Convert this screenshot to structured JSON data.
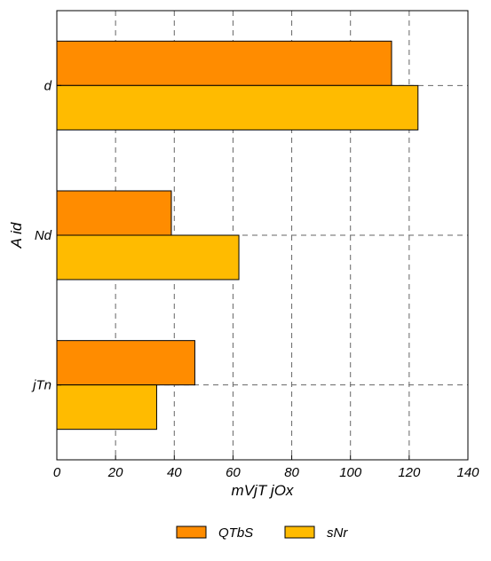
{
  "chart_data": {
    "type": "bar",
    "orientation": "horizontal",
    "categories": [
      "d",
      "Nd",
      "jTn"
    ],
    "series": [
      {
        "name": "QTbS",
        "values": [
          114,
          39,
          47
        ],
        "color": "#ff8c00"
      },
      {
        "name": "sNr",
        "values": [
          123,
          62,
          34
        ],
        "color": "#ffbb00"
      }
    ],
    "xlabel": "mVjT  jOx",
    "ylabel": "A  id",
    "xlim": [
      0,
      140
    ],
    "xticks": [
      0,
      20,
      40,
      60,
      80,
      100,
      120,
      140
    ],
    "grid": true,
    "legend_position": "bottom"
  }
}
